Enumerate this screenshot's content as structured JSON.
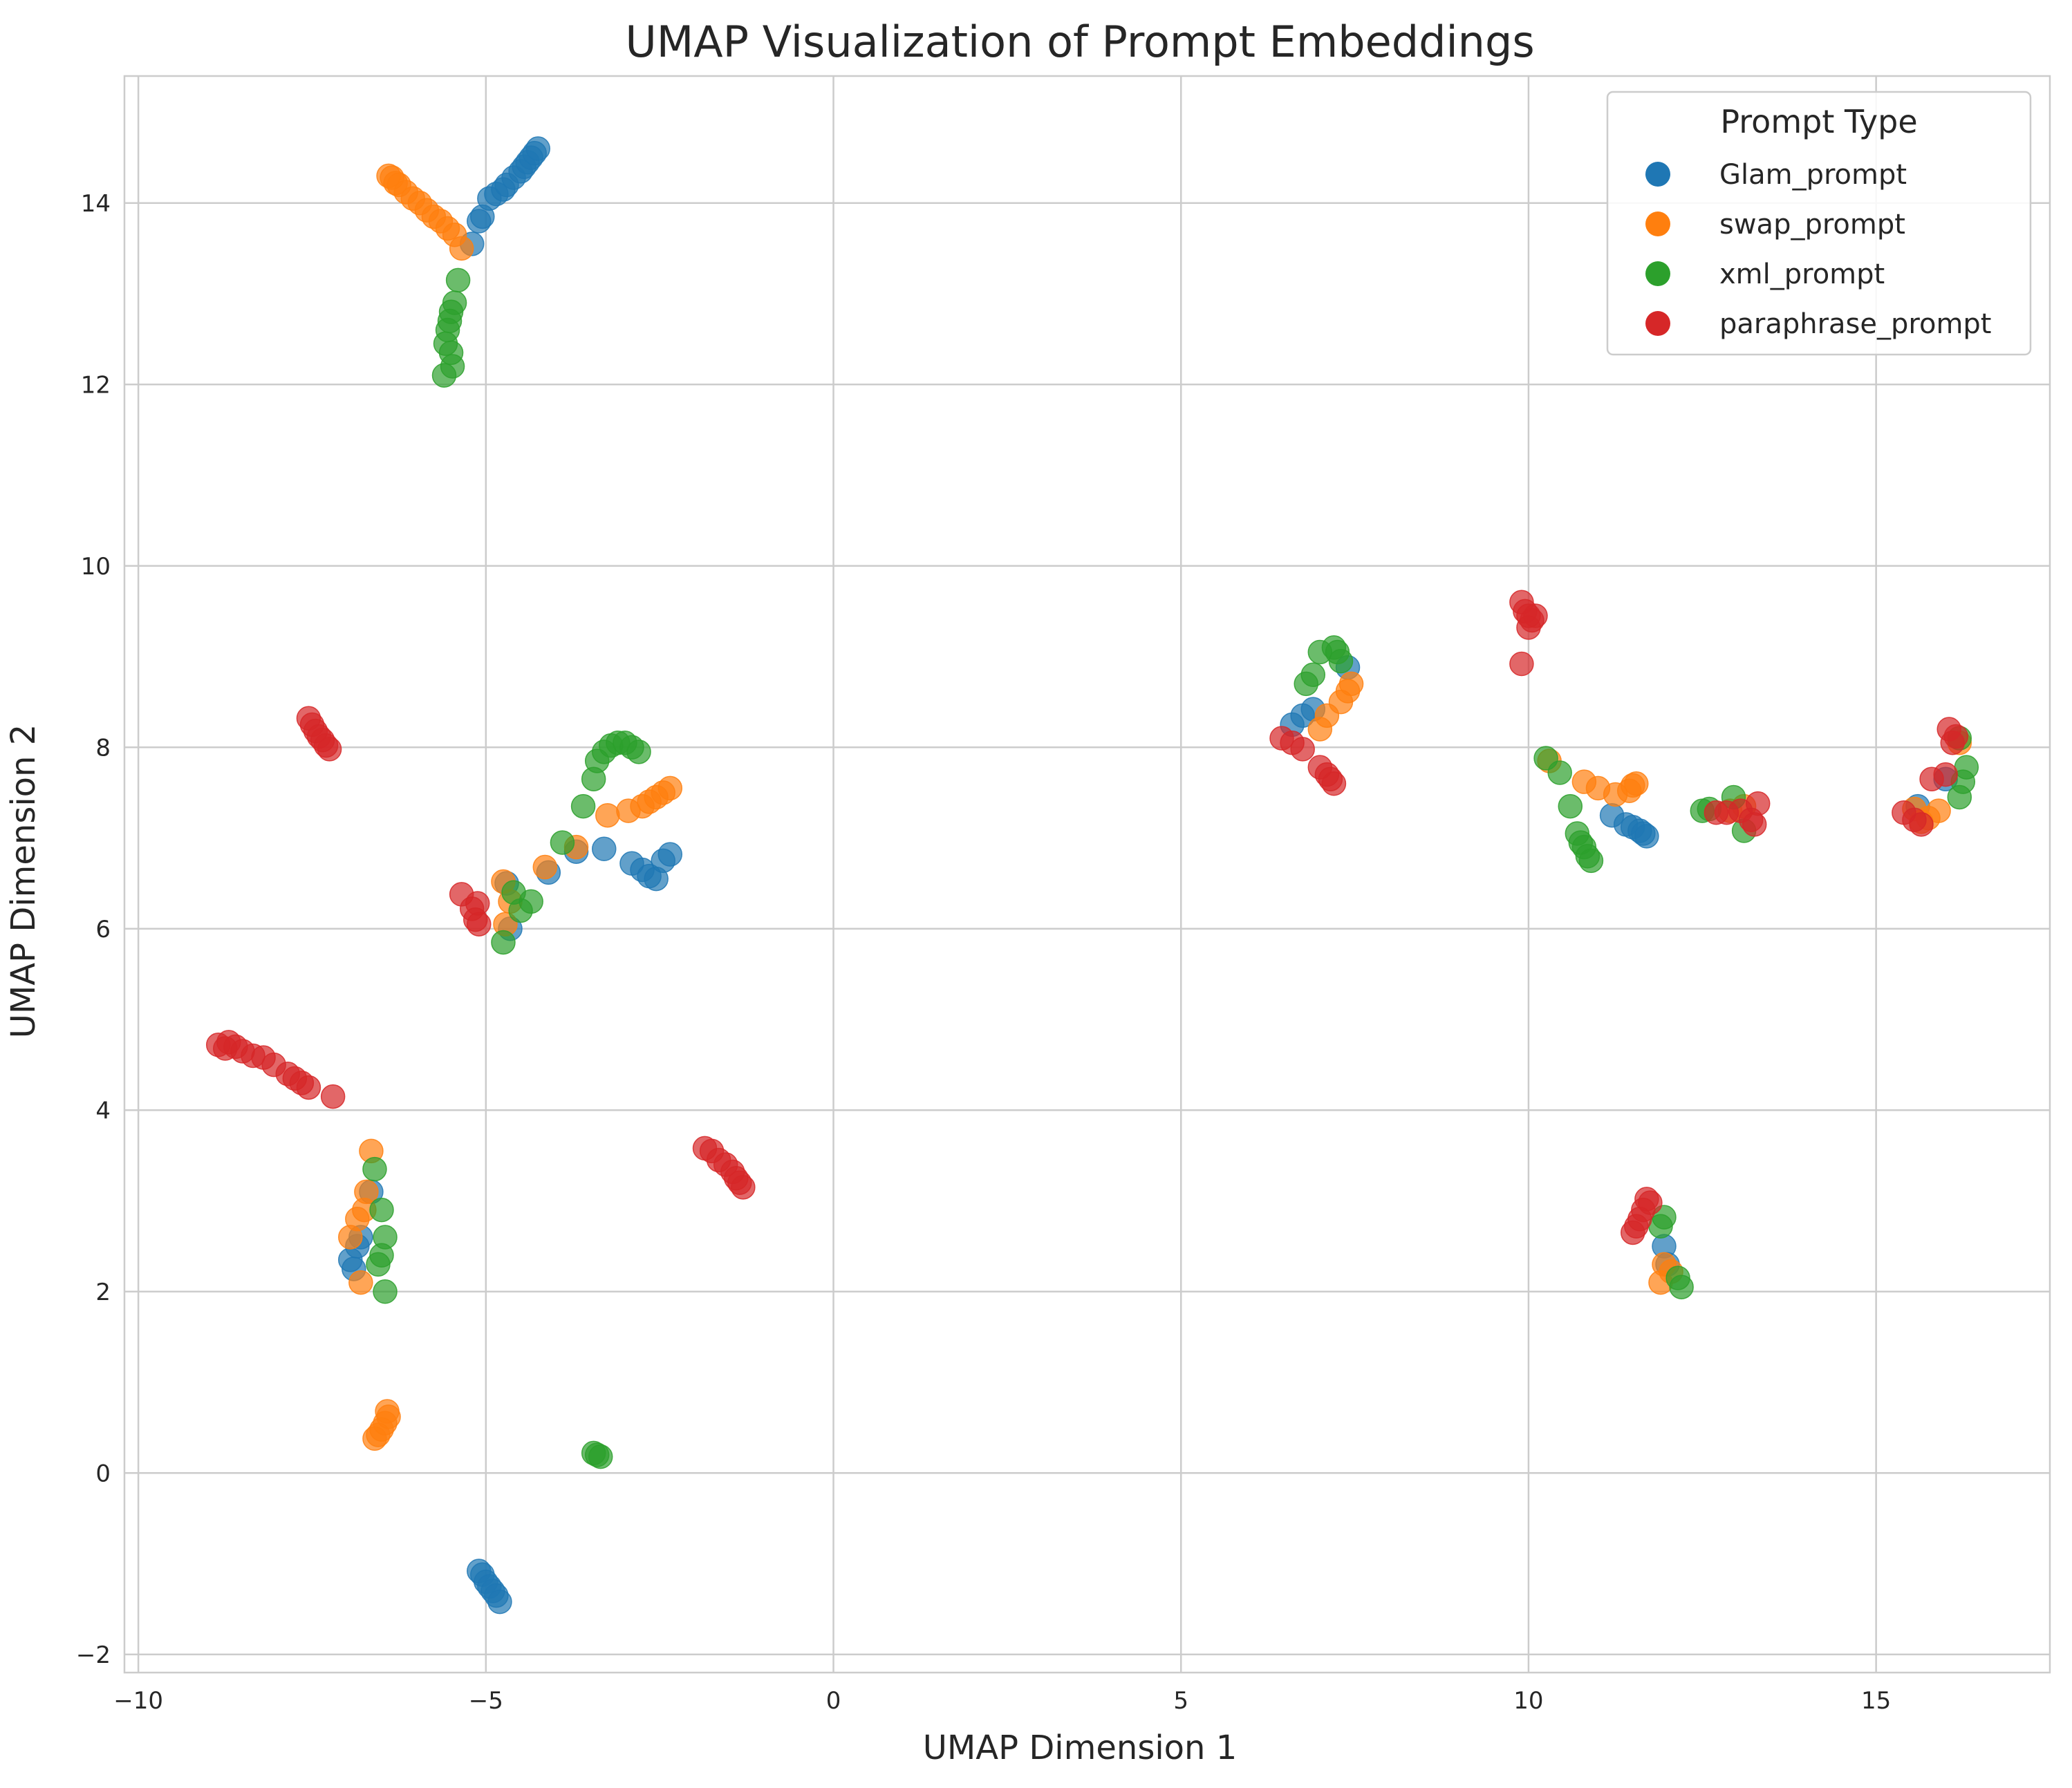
{
  "chart_data": {
    "type": "scatter",
    "title": "UMAP Visualization of Prompt Embeddings",
    "xlabel": "UMAP Dimension 1",
    "ylabel": "UMAP Dimension 2",
    "xlim": [
      -10.2,
      17.5
    ],
    "ylim": [
      -2.2,
      15.4
    ],
    "xticks": [
      -10,
      -5,
      0,
      5,
      10,
      15
    ],
    "yticks": [
      -2,
      0,
      2,
      4,
      6,
      8,
      10,
      12,
      14
    ],
    "grid": true,
    "legend": {
      "title": "Prompt Type",
      "placement": "top-right"
    },
    "series": [
      {
        "name": "Glam_prompt",
        "color": "#1f77b4",
        "points": [
          [
            -5.2,
            13.55
          ],
          [
            -5.1,
            13.8
          ],
          [
            -5.05,
            13.85
          ],
          [
            -4.95,
            14.05
          ],
          [
            -4.85,
            14.1
          ],
          [
            -4.75,
            14.15
          ],
          [
            -4.7,
            14.2
          ],
          [
            -4.6,
            14.28
          ],
          [
            -4.5,
            14.35
          ],
          [
            -4.45,
            14.4
          ],
          [
            -4.4,
            14.45
          ],
          [
            -4.35,
            14.5
          ],
          [
            -4.3,
            14.55
          ],
          [
            -4.25,
            14.6
          ],
          [
            -4.7,
            6.5
          ],
          [
            -4.65,
            6.0
          ],
          [
            -4.1,
            6.62
          ],
          [
            -3.7,
            6.85
          ],
          [
            -3.3,
            6.88
          ],
          [
            -2.9,
            6.72
          ],
          [
            -2.75,
            6.65
          ],
          [
            -2.65,
            6.58
          ],
          [
            -2.55,
            6.55
          ],
          [
            -2.45,
            6.75
          ],
          [
            -2.35,
            6.82
          ],
          [
            -6.95,
            2.35
          ],
          [
            -6.9,
            2.25
          ],
          [
            -6.85,
            2.5
          ],
          [
            -6.8,
            2.6
          ],
          [
            -6.65,
            3.1
          ],
          [
            -5.1,
            -1.08
          ],
          [
            -5.05,
            -1.12
          ],
          [
            -5.0,
            -1.2
          ],
          [
            -4.95,
            -1.25
          ],
          [
            -4.9,
            -1.3
          ],
          [
            -4.85,
            -1.35
          ],
          [
            -4.8,
            -1.42
          ],
          [
            6.6,
            8.25
          ],
          [
            6.75,
            8.35
          ],
          [
            6.9,
            8.42
          ],
          [
            7.4,
            8.88
          ],
          [
            11.2,
            7.25
          ],
          [
            11.4,
            7.15
          ],
          [
            11.5,
            7.12
          ],
          [
            11.6,
            7.08
          ],
          [
            11.65,
            7.05
          ],
          [
            11.7,
            7.02
          ],
          [
            11.95,
            2.5
          ],
          [
            12.0,
            2.3
          ],
          [
            15.6,
            7.35
          ],
          [
            16.0,
            7.65
          ]
        ]
      },
      {
        "name": "swap_prompt",
        "color": "#ff7f0e",
        "points": [
          [
            -6.4,
            14.3
          ],
          [
            -6.35,
            14.28
          ],
          [
            -6.3,
            14.22
          ],
          [
            -6.25,
            14.2
          ],
          [
            -6.15,
            14.12
          ],
          [
            -6.05,
            14.05
          ],
          [
            -5.95,
            14.0
          ],
          [
            -5.85,
            13.92
          ],
          [
            -5.75,
            13.85
          ],
          [
            -5.65,
            13.8
          ],
          [
            -5.55,
            13.72
          ],
          [
            -5.45,
            13.65
          ],
          [
            -5.35,
            13.5
          ],
          [
            -4.75,
            6.52
          ],
          [
            -4.65,
            6.3
          ],
          [
            -4.72,
            6.05
          ],
          [
            -4.15,
            6.68
          ],
          [
            -3.7,
            6.9
          ],
          [
            -3.25,
            7.25
          ],
          [
            -2.95,
            7.3
          ],
          [
            -2.75,
            7.35
          ],
          [
            -2.65,
            7.4
          ],
          [
            -2.55,
            7.45
          ],
          [
            -2.45,
            7.5
          ],
          [
            -2.35,
            7.55
          ],
          [
            -6.95,
            2.6
          ],
          [
            -6.85,
            2.8
          ],
          [
            -6.8,
            2.1
          ],
          [
            -6.75,
            2.9
          ],
          [
            -6.72,
            3.1
          ],
          [
            -6.65,
            3.55
          ],
          [
            -6.6,
            0.38
          ],
          [
            -6.55,
            0.42
          ],
          [
            -6.5,
            0.48
          ],
          [
            -6.45,
            0.55
          ],
          [
            -6.4,
            0.62
          ],
          [
            -6.42,
            0.68
          ],
          [
            7.0,
            8.2
          ],
          [
            7.1,
            8.35
          ],
          [
            7.3,
            8.5
          ],
          [
            7.4,
            8.62
          ],
          [
            7.45,
            8.7
          ],
          [
            10.3,
            7.85
          ],
          [
            10.8,
            7.62
          ],
          [
            11.0,
            7.55
          ],
          [
            11.25,
            7.48
          ],
          [
            11.45,
            7.52
          ],
          [
            11.5,
            7.58
          ],
          [
            11.55,
            7.6
          ],
          [
            11.9,
            2.1
          ],
          [
            11.95,
            2.3
          ],
          [
            12.05,
            2.22
          ],
          [
            12.9,
            7.3
          ],
          [
            13.1,
            7.35
          ],
          [
            15.55,
            7.32
          ],
          [
            15.65,
            7.18
          ],
          [
            15.75,
            7.22
          ],
          [
            15.9,
            7.3
          ],
          [
            16.2,
            8.05
          ]
        ]
      },
      {
        "name": "xml_prompt",
        "color": "#2ca02c",
        "points": [
          [
            -5.4,
            13.15
          ],
          [
            -5.45,
            12.9
          ],
          [
            -5.5,
            12.8
          ],
          [
            -5.52,
            12.7
          ],
          [
            -5.55,
            12.6
          ],
          [
            -5.58,
            12.45
          ],
          [
            -5.5,
            12.35
          ],
          [
            -5.48,
            12.2
          ],
          [
            -5.6,
            12.1
          ],
          [
            -4.75,
            5.85
          ],
          [
            -4.6,
            6.4
          ],
          [
            -4.5,
            6.2
          ],
          [
            -4.35,
            6.3
          ],
          [
            -3.9,
            6.95
          ],
          [
            -3.6,
            7.35
          ],
          [
            -3.45,
            7.65
          ],
          [
            -3.4,
            7.85
          ],
          [
            -3.3,
            7.95
          ],
          [
            -3.2,
            8.02
          ],
          [
            -3.1,
            8.05
          ],
          [
            -3.0,
            8.05
          ],
          [
            -2.9,
            8.0
          ],
          [
            -2.8,
            7.95
          ],
          [
            -6.6,
            3.35
          ],
          [
            -6.5,
            2.9
          ],
          [
            -6.45,
            2.6
          ],
          [
            -6.5,
            2.4
          ],
          [
            -6.55,
            2.3
          ],
          [
            -6.45,
            2.0
          ],
          [
            -3.45,
            0.22
          ],
          [
            -3.4,
            0.2
          ],
          [
            -3.35,
            0.18
          ],
          [
            6.8,
            8.7
          ],
          [
            6.9,
            8.8
          ],
          [
            7.0,
            9.05
          ],
          [
            7.2,
            9.1
          ],
          [
            7.25,
            9.05
          ],
          [
            7.3,
            8.95
          ],
          [
            10.25,
            7.88
          ],
          [
            10.45,
            7.72
          ],
          [
            10.6,
            7.35
          ],
          [
            10.7,
            7.05
          ],
          [
            10.75,
            6.95
          ],
          [
            10.8,
            6.9
          ],
          [
            10.85,
            6.8
          ],
          [
            10.9,
            6.75
          ],
          [
            11.9,
            2.72
          ],
          [
            11.95,
            2.82
          ],
          [
            12.15,
            2.15
          ],
          [
            12.2,
            2.05
          ],
          [
            12.5,
            7.3
          ],
          [
            12.6,
            7.32
          ],
          [
            12.95,
            7.45
          ],
          [
            13.1,
            7.08
          ],
          [
            16.2,
            7.45
          ],
          [
            16.25,
            7.62
          ],
          [
            16.3,
            7.78
          ],
          [
            16.2,
            8.1
          ]
        ]
      },
      {
        "name": "paraphrase_prompt",
        "color": "#d62728",
        "points": [
          [
            -7.55,
            8.32
          ],
          [
            -7.5,
            8.25
          ],
          [
            -7.45,
            8.18
          ],
          [
            -7.4,
            8.12
          ],
          [
            -7.35,
            8.08
          ],
          [
            -7.3,
            8.02
          ],
          [
            -7.25,
            7.98
          ],
          [
            -5.35,
            6.38
          ],
          [
            -5.2,
            6.22
          ],
          [
            -5.15,
            6.1
          ],
          [
            -5.1,
            6.05
          ],
          [
            -5.12,
            6.28
          ],
          [
            -8.85,
            4.72
          ],
          [
            -8.75,
            4.68
          ],
          [
            -8.7,
            4.75
          ],
          [
            -8.6,
            4.7
          ],
          [
            -8.5,
            4.65
          ],
          [
            -8.35,
            4.6
          ],
          [
            -8.2,
            4.58
          ],
          [
            -8.05,
            4.5
          ],
          [
            -7.85,
            4.4
          ],
          [
            -7.75,
            4.35
          ],
          [
            -7.65,
            4.3
          ],
          [
            -7.55,
            4.25
          ],
          [
            -7.2,
            4.15
          ],
          [
            -1.85,
            3.58
          ],
          [
            -1.75,
            3.55
          ],
          [
            -1.65,
            3.45
          ],
          [
            -1.55,
            3.4
          ],
          [
            -1.45,
            3.32
          ],
          [
            -1.4,
            3.25
          ],
          [
            -1.35,
            3.2
          ],
          [
            -1.3,
            3.15
          ],
          [
            6.45,
            8.1
          ],
          [
            6.6,
            8.05
          ],
          [
            6.75,
            7.98
          ],
          [
            7.0,
            7.78
          ],
          [
            7.1,
            7.7
          ],
          [
            7.15,
            7.65
          ],
          [
            7.2,
            7.6
          ],
          [
            9.9,
            9.6
          ],
          [
            9.95,
            9.5
          ],
          [
            10.0,
            9.45
          ],
          [
            10.05,
            9.4
          ],
          [
            10.1,
            9.45
          ],
          [
            10.0,
            9.32
          ],
          [
            9.9,
            8.92
          ],
          [
            11.5,
            2.65
          ],
          [
            11.55,
            2.72
          ],
          [
            11.6,
            2.8
          ],
          [
            11.65,
            2.9
          ],
          [
            11.7,
            3.02
          ],
          [
            11.75,
            2.98
          ],
          [
            12.7,
            7.28
          ],
          [
            12.85,
            7.28
          ],
          [
            13.05,
            7.3
          ],
          [
            13.2,
            7.2
          ],
          [
            13.25,
            7.15
          ],
          [
            13.3,
            7.38
          ],
          [
            15.4,
            7.28
          ],
          [
            15.55,
            7.2
          ],
          [
            15.65,
            7.15
          ],
          [
            15.8,
            7.65
          ],
          [
            16.0,
            7.7
          ],
          [
            16.05,
            8.2
          ],
          [
            16.1,
            8.05
          ],
          [
            16.15,
            8.12
          ]
        ]
      }
    ]
  }
}
